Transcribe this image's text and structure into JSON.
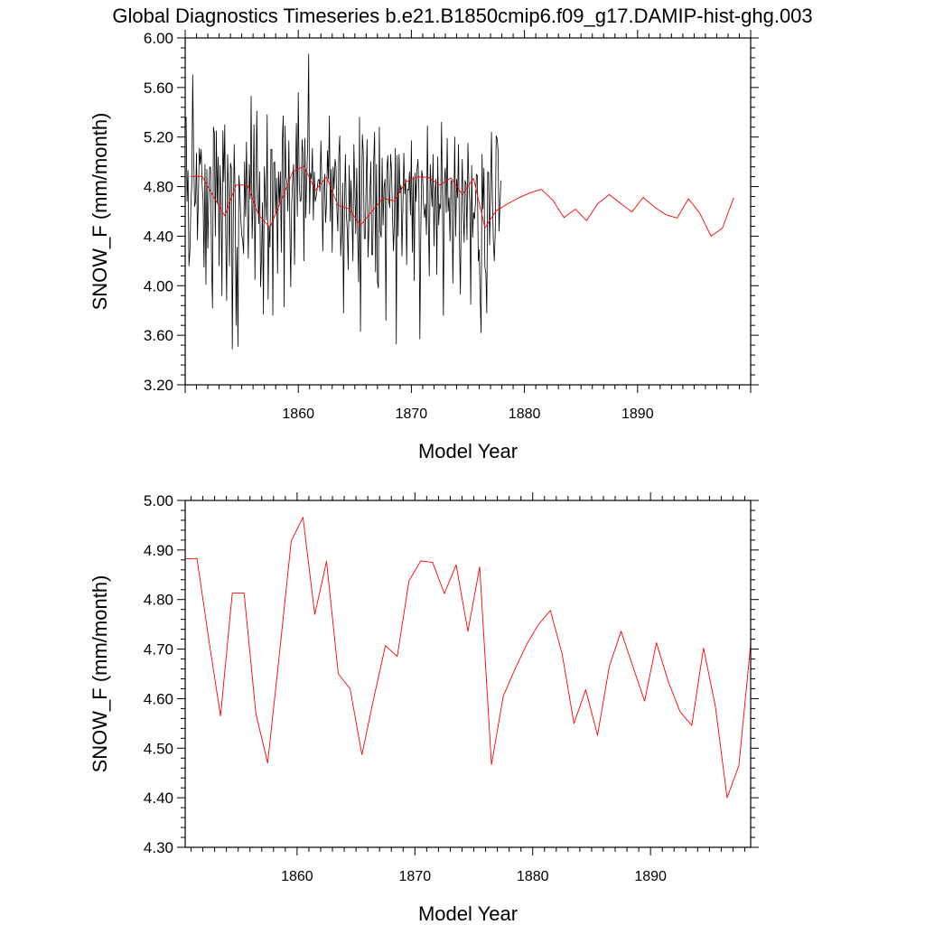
{
  "figure": {
    "title": "Global Diagnostics Timeseries b.e21.B1850cmip6.f09_g17.DAMIP-hist-ghg.003"
  },
  "chart_data": [
    {
      "type": "line",
      "ylabel": "SNOW_F (mm/month)",
      "xlabel": "Model Year",
      "xlim": [
        1850,
        1900
      ],
      "ylim": [
        3.2,
        6.0
      ],
      "yticks": [
        "3.20",
        "3.60",
        "4.00",
        "4.40",
        "4.80",
        "5.20",
        "5.60",
        "6.00"
      ],
      "xticks": [
        "1860",
        "1870",
        "1880",
        "1890"
      ],
      "grid": false,
      "series": [
        {
          "color": "#000000",
          "resolution": "monthly",
          "x_start": 1850.0,
          "x_step": 0.0833333,
          "values": [
            5.34,
            5.36,
            4.68,
            4.93,
            4.16,
            4.28,
            4.63,
            4.83,
            5.7,
            5.05,
            4.64,
            4.68,
            5.07,
            4.37,
            4.7,
            5.11,
            4.98,
            5.1,
            4.81,
            4.69,
            4.15,
            4.98,
            4.01,
            4.94,
            4.3,
            4.7,
            4.96,
            4.95,
            4.19,
            3.82,
            5.28,
            5.23,
            4.4,
            5.25,
            4.67,
            5.04,
            4.16,
            4.97,
            4.73,
            3.92,
            5.25,
            4.84,
            5.3,
            4.42,
            3.88,
            5.06,
            4.77,
            4.16,
            4.99,
            4.95,
            3.49,
            4.5,
            5.14,
            4.71,
            3.68,
            4.31,
            3.51,
            4.89,
            4.78,
            4.54,
            4.41,
            4.37,
            4.26,
            5.0,
            4.56,
            5.16,
            4.63,
            4.22,
            4.98,
            4.7,
            5.53,
            4.38,
            4.66,
            5.3,
            4.05,
            4.78,
            5.41,
            4.75,
            4.5,
            4.92,
            3.99,
            4.22,
            4.67,
            3.77,
            4.96,
            4.73,
            4.53,
            5.38,
            3.89,
            4.48,
            4.31,
            5.1,
            5.1,
            3.76,
            4.99,
            5.0,
            4.58,
            4.87,
            4.1,
            4.92,
            4.67,
            4.92,
            4.27,
            5.15,
            5.37,
            3.83,
            5.29,
            4.88,
            4.83,
            4.6,
            5.17,
            4.49,
            3.99,
            4.66,
            4.84,
            4.98,
            4.17,
            4.86,
            5.31,
            4.56,
            5.56,
            4.83,
            4.68,
            4.69,
            5.18,
            5.07,
            4.2,
            5.19,
            4.55,
            4.89,
            5.13,
            5.87,
            4.58,
            4.91,
            4.86,
            5.11,
            4.53,
            4.92,
            4.68,
            4.72,
            4.78,
            4.85,
            4.86,
            4.76,
            5.17,
            4.83,
            4.28,
            4.76,
            4.9,
            4.51,
            4.67,
            5.09,
            4.86,
            5.37,
            4.52,
            4.94,
            4.27,
            4.96,
            4.78,
            5.02,
            4.96,
            4.61,
            4.44,
            5.05,
            5.21,
            4.24,
            4.43,
            4.83,
            3.78,
            4.63,
            5.06,
            4.57,
            4.45,
            4.13,
            4.97,
            4.52,
            4.85,
            4.57,
            4.2,
            5.14,
            4.79,
            4.42,
            4.95,
            4.43,
            4.03,
            5.36,
            3.63,
            4.62,
            5.22,
            5.07,
            4.38,
            4.38,
            4.82,
            5.18,
            4.23,
            4.47,
            4.75,
            5.0,
            4.25,
            4.25,
            5.0,
            5.24,
            4.11,
            4.98,
            4.03,
            3.98,
            5.28,
            4.44,
            4.39,
            5.03,
            4.49,
            4.79,
            4.86,
            3.72,
            4.94,
            5.05,
            4.69,
            4.63,
            5.06,
            4.92,
            4.56,
            4.28,
            4.54,
            5.11,
            3.53,
            5.05,
            4.4,
            5.06,
            4.75,
            4.81,
            4.24,
            4.63,
            5.07,
            4.74,
            4.86,
            4.17,
            4.78,
            4.77,
            4.92,
            4.57,
            5.17,
            4.27,
            4.88,
            4.04,
            4.91,
            4.68,
            4.94,
            5.02,
            4.76,
            3.57,
            4.42,
            4.93,
            4.88,
            4.64,
            4.55,
            4.66,
            4.41,
            5.29,
            4.54,
            4.08,
            4.98,
            4.79,
            4.64,
            5.06,
            4.32,
            4.75,
            4.86,
            4.09,
            5.04,
            4.49,
            4.66,
            4.62,
            5.32,
            4.65,
            3.76,
            4.85,
            4.95,
            4.59,
            5.19,
            4.6,
            4.71,
            4.36,
            4.85,
            4.84,
            4.02,
            4.58,
            5.2,
            4.4,
            4.86,
            4.71,
            5.14,
            4.38,
            3.93,
            4.64,
            5.02,
            4.58,
            4.35,
            4.85,
            4.82,
            4.37,
            5.15,
            4.82,
            4.67,
            3.85,
            4.97,
            4.39,
            4.59,
            4.54,
            4.67,
            4.9,
            4.89,
            4.2,
            4.29,
            3.89,
            3.62,
            5.06,
            4.62,
            4.95,
            4.15,
            4.11,
            3.78,
            4.92,
            4.91,
            4.33,
            4.7,
            5.24,
            4.71,
            4.36,
            4.2,
            4.43,
            5.21,
            5.19,
            5.09,
            4.44,
            4.65,
            4.85
          ]
        },
        {
          "color": "#ff0000",
          "resolution": "annual",
          "x": [
            1850.5,
            1851.5,
            1852.5,
            1853.5,
            1854.5,
            1855.5,
            1856.5,
            1857.5,
            1858.5,
            1859.5,
            1860.5,
            1861.5,
            1862.5,
            1863.5,
            1864.5,
            1865.5,
            1866.5,
            1867.5,
            1868.5,
            1869.5,
            1870.5,
            1871.5,
            1872.5,
            1873.5,
            1874.5,
            1875.5,
            1876.5,
            1877.5,
            1878.5,
            1879.5,
            1880.5,
            1881.5,
            1882.5,
            1883.5,
            1884.5,
            1885.5,
            1886.5,
            1887.5,
            1888.5,
            1889.5,
            1890.5,
            1891.5,
            1892.5,
            1893.5,
            1894.5,
            1895.5,
            1896.5,
            1897.5,
            1898.5
          ],
          "values": [
            4.882,
            4.883,
            4.72,
            4.565,
            4.813,
            4.813,
            4.57,
            4.47,
            4.69,
            4.918,
            4.966,
            4.77,
            4.877,
            4.65,
            4.62,
            4.487,
            4.6,
            4.707,
            4.685,
            4.838,
            4.878,
            4.875,
            4.812,
            4.87,
            4.736,
            4.866,
            4.467,
            4.605,
            4.66,
            4.71,
            4.75,
            4.778,
            4.69,
            4.55,
            4.618,
            4.526,
            4.665,
            4.736,
            4.665,
            4.595,
            4.713,
            4.635,
            4.574,
            4.546,
            4.702,
            4.585,
            4.4,
            4.465,
            4.71
          ]
        }
      ]
    },
    {
      "type": "line",
      "ylabel": "SNOW_F (mm/month)",
      "xlabel": "Model Year",
      "xlim": [
        1850.5,
        1898.5
      ],
      "ylim": [
        4.3,
        5.0
      ],
      "yticks": [
        "4.30",
        "4.40",
        "4.50",
        "4.60",
        "4.70",
        "4.80",
        "4.90",
        "5.00"
      ],
      "xticks": [
        "1860",
        "1870",
        "1880",
        "1890"
      ],
      "grid": false,
      "series": [
        {
          "color": "#ff0000",
          "resolution": "annual",
          "x": [
            1850.5,
            1851.5,
            1852.5,
            1853.5,
            1854.5,
            1855.5,
            1856.5,
            1857.5,
            1858.5,
            1859.5,
            1860.5,
            1861.5,
            1862.5,
            1863.5,
            1864.5,
            1865.5,
            1866.5,
            1867.5,
            1868.5,
            1869.5,
            1870.5,
            1871.5,
            1872.5,
            1873.5,
            1874.5,
            1875.5,
            1876.5,
            1877.5,
            1878.5,
            1879.5,
            1880.5,
            1881.5,
            1882.5,
            1883.5,
            1884.5,
            1885.5,
            1886.5,
            1887.5,
            1888.5,
            1889.5,
            1890.5,
            1891.5,
            1892.5,
            1893.5,
            1894.5,
            1895.5,
            1896.5,
            1897.5,
            1898.5
          ],
          "values": [
            4.882,
            4.883,
            4.72,
            4.565,
            4.813,
            4.813,
            4.57,
            4.47,
            4.69,
            4.918,
            4.966,
            4.77,
            4.877,
            4.65,
            4.62,
            4.487,
            4.6,
            4.707,
            4.685,
            4.838,
            4.878,
            4.875,
            4.812,
            4.87,
            4.736,
            4.866,
            4.467,
            4.605,
            4.66,
            4.71,
            4.75,
            4.778,
            4.69,
            4.55,
            4.618,
            4.526,
            4.665,
            4.736,
            4.665,
            4.595,
            4.713,
            4.635,
            4.574,
            4.546,
            4.702,
            4.585,
            4.4,
            4.465,
            4.71
          ]
        }
      ]
    }
  ]
}
